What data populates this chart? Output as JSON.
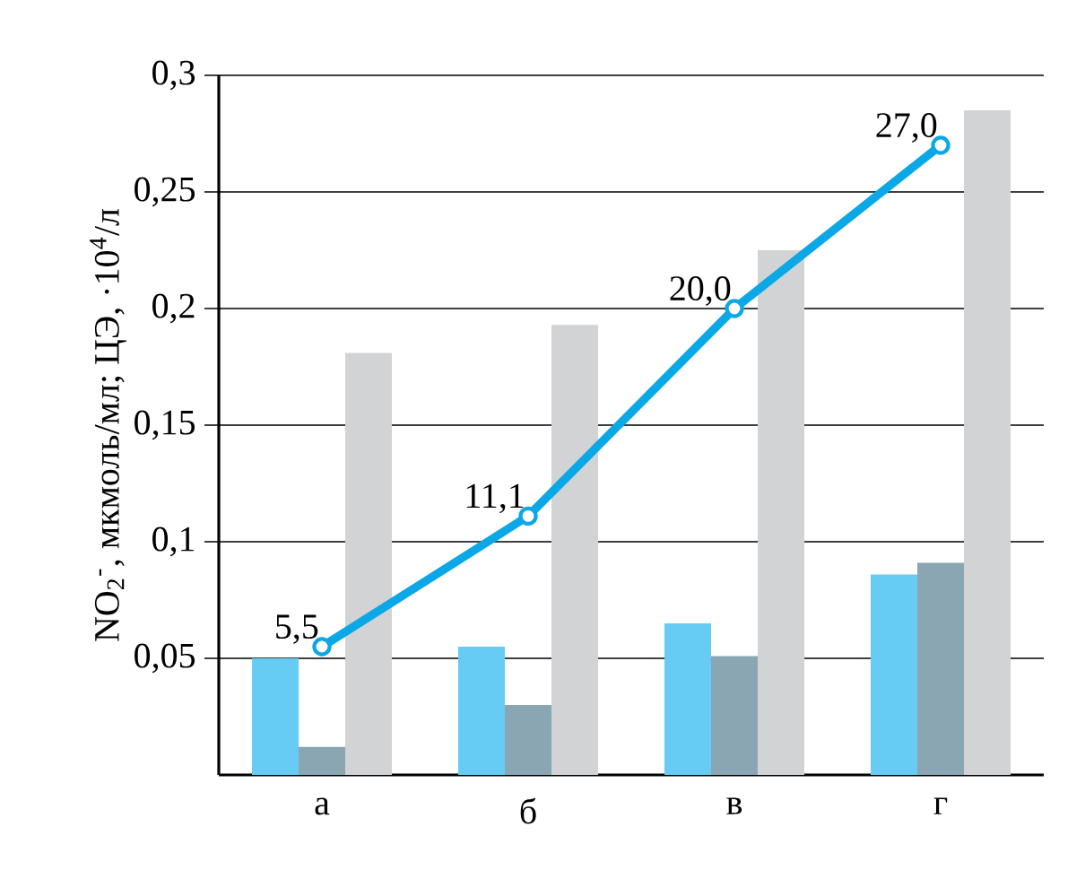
{
  "chart_data": {
    "type": "bar",
    "ylabel": "NO$_{2}$$^{-}$, мкмоль/мл; ЦЭ, ·10$^{4}$/л",
    "categories": [
      "а",
      "б",
      "в",
      "г"
    ],
    "series": [
      {
        "color": "#66ccf4",
        "values": [
          0.05,
          0.055,
          0.065,
          0.086
        ]
      },
      {
        "color": "#8aa6b2",
        "values": [
          0.012,
          0.03,
          0.051,
          0.091
        ]
      },
      {
        "color": "#d1d3d5",
        "values": [
          0.181,
          0.193,
          0.225,
          0.285
        ]
      },
      {
        "type": "line",
        "axis": "y2",
        "color": "#0aa8e6",
        "marker": "circle",
        "values": [
          5.5,
          11.1,
          20.0,
          27.0
        ],
        "value_labels": [
          "5,5",
          "11,1",
          "20,0",
          "27,0"
        ]
      }
    ],
    "ylim": [
      0,
      0.3
    ],
    "y2lim": [
      0,
      30
    ],
    "yticks": [
      {
        "value": 0.05,
        "label": "0,05"
      },
      {
        "value": 0.1,
        "label": "0,1"
      },
      {
        "value": 0.15,
        "label": "0,15"
      },
      {
        "value": 0.2,
        "label": "0,2"
      },
      {
        "value": 0.25,
        "label": "0,25"
      },
      {
        "value": 0.3,
        "label": "0,3"
      }
    ],
    "grid": "y"
  }
}
